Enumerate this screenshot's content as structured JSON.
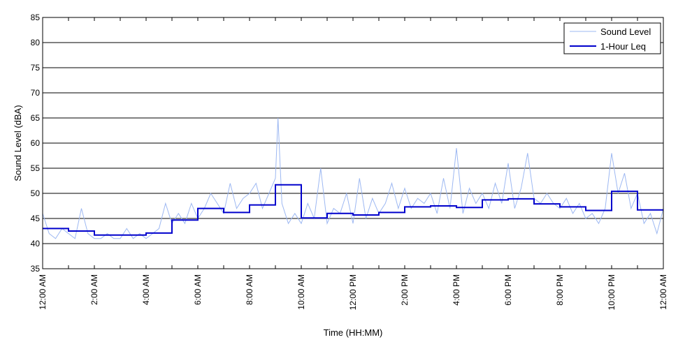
{
  "chart_data": {
    "type": "line",
    "title": "",
    "xlabel": "Time (HH:MM)",
    "ylabel": "Sound Level (dBA)",
    "xlim": [
      0,
      24
    ],
    "ylim": [
      35,
      85
    ],
    "yticks": [
      35,
      40,
      45,
      50,
      55,
      60,
      65,
      70,
      75,
      80,
      85
    ],
    "xticks": [
      0,
      2,
      4,
      6,
      8,
      10,
      12,
      14,
      16,
      18,
      20,
      22,
      24
    ],
    "xtick_labels": [
      "12:00 AM",
      "2:00 AM",
      "4:00 AM",
      "6:00 AM",
      "8:00 AM",
      "10:00 AM",
      "12:00 PM",
      "2:00 PM",
      "4:00 PM",
      "6:00 PM",
      "8:00 PM",
      "10:00 PM",
      "12:00 AM"
    ],
    "grid": "horizontal",
    "legend_position": "top-right",
    "series": [
      {
        "name": "Sound Level",
        "color": "#9db8f2",
        "x": [
          0,
          0.25,
          0.5,
          0.75,
          1,
          1.25,
          1.5,
          1.75,
          2,
          2.25,
          2.5,
          2.75,
          3,
          3.25,
          3.5,
          3.75,
          4,
          4.25,
          4.5,
          4.75,
          5,
          5.25,
          5.5,
          5.75,
          6,
          6.25,
          6.5,
          6.75,
          7,
          7.25,
          7.5,
          7.75,
          8,
          8.25,
          8.5,
          8.75,
          9,
          9.1,
          9.25,
          9.5,
          9.75,
          10,
          10.25,
          10.5,
          10.75,
          11,
          11.25,
          11.5,
          11.75,
          12,
          12.25,
          12.5,
          12.75,
          13,
          13.25,
          13.5,
          13.75,
          14,
          14.25,
          14.5,
          14.75,
          15,
          15.25,
          15.5,
          15.75,
          16,
          16.25,
          16.5,
          16.75,
          17,
          17.25,
          17.5,
          17.75,
          18,
          18.25,
          18.5,
          18.75,
          19,
          19.25,
          19.5,
          19.75,
          20,
          20.25,
          20.5,
          20.75,
          21,
          21.25,
          21.5,
          21.75,
          22,
          22.25,
          22.5,
          22.75,
          23,
          23.25,
          23.5,
          23.75,
          24
        ],
        "values": [
          46,
          42,
          41,
          43,
          42,
          41,
          47,
          42,
          41,
          41,
          42,
          41,
          41,
          43,
          41,
          42,
          41,
          42,
          43,
          48,
          44,
          46,
          44,
          48,
          45,
          47,
          50,
          48,
          46,
          52,
          47,
          49,
          50,
          52,
          47,
          50,
          53,
          65,
          48,
          44,
          46,
          44,
          48,
          45,
          55,
          44,
          47,
          46,
          50,
          44,
          53,
          45,
          49,
          46,
          48,
          52,
          47,
          51,
          47,
          49,
          48,
          50,
          46,
          53,
          47,
          59,
          46,
          51,
          48,
          50,
          47,
          52,
          48,
          56,
          47,
          51,
          58,
          49,
          48,
          50,
          48,
          47,
          49,
          46,
          48,
          45,
          46,
          44,
          47,
          58,
          50,
          54,
          47,
          50,
          44,
          46,
          42,
          47
        ]
      },
      {
        "name": "1-Hour Leq",
        "color": "#0000cc",
        "type": "step",
        "hours": [
          0,
          1,
          2,
          3,
          4,
          5,
          6,
          7,
          8,
          9,
          10,
          11,
          12,
          13,
          14,
          15,
          16,
          17,
          18,
          19,
          20,
          21,
          22,
          23
        ],
        "values": [
          43.0,
          42.5,
          41.7,
          41.7,
          42.1,
          44.7,
          47.0,
          46.2,
          47.7,
          51.7,
          45.1,
          46.0,
          45.7,
          46.2,
          47.3,
          47.5,
          47.2,
          48.7,
          48.9,
          47.9,
          47.3,
          46.6,
          50.4,
          46.7
        ]
      }
    ]
  }
}
